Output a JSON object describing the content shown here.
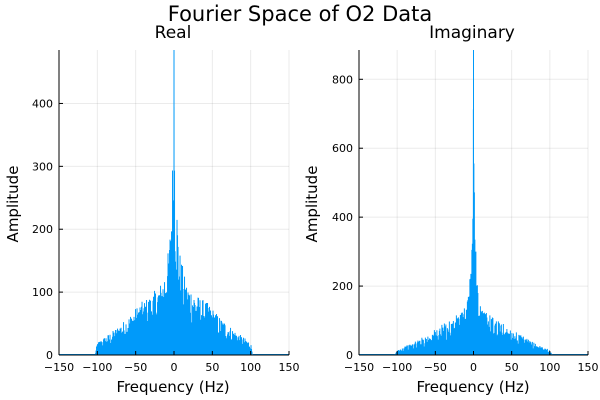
{
  "figure": {
    "title": "Fourier Space of O2 Data",
    "series_color": "#009AFA"
  },
  "chart_data": [
    {
      "type": "line",
      "title": "Real",
      "xlabel": "Frequency (Hz)",
      "ylabel": "Amplitude",
      "xlim": [
        -150,
        150
      ],
      "ylim": [
        0,
        485
      ],
      "xticks": [
        -150,
        -100,
        -50,
        0,
        50,
        100,
        150
      ],
      "yticks": [
        0,
        100,
        200,
        300,
        400
      ],
      "grid": true,
      "legend": false,
      "spectrum": {
        "x_range": [
          -103,
          103
        ],
        "envelope": [
          {
            "x": -150,
            "y": 0
          },
          {
            "x": -103,
            "y": 0
          },
          {
            "x": -100,
            "y": 20
          },
          {
            "x": -80,
            "y": 38
          },
          {
            "x": -60,
            "y": 60
          },
          {
            "x": -45,
            "y": 82
          },
          {
            "x": -30,
            "y": 95
          },
          {
            "x": -15,
            "y": 118
          },
          {
            "x": -6,
            "y": 175
          },
          {
            "x": -2,
            "y": 300
          },
          {
            "x": 0,
            "y": 485
          },
          {
            "x": 2,
            "y": 300
          },
          {
            "x": 6,
            "y": 175
          },
          {
            "x": 15,
            "y": 118
          },
          {
            "x": 30,
            "y": 95
          },
          {
            "x": 45,
            "y": 82
          },
          {
            "x": 60,
            "y": 60
          },
          {
            "x": 80,
            "y": 38
          },
          {
            "x": 100,
            "y": 20
          },
          {
            "x": 103,
            "y": 0
          },
          {
            "x": 150,
            "y": 0
          }
        ]
      }
    },
    {
      "type": "line",
      "title": "Imaginary",
      "xlabel": "Frequency (Hz)",
      "ylabel": "Amplitude",
      "xlim": [
        -150,
        150
      ],
      "ylim": [
        0,
        885
      ],
      "xticks": [
        -150,
        -100,
        -50,
        0,
        50,
        100,
        150
      ],
      "yticks": [
        0,
        200,
        400,
        600,
        800
      ],
      "grid": true,
      "legend": false,
      "spectrum": {
        "x_range": [
          -103,
          103
        ],
        "envelope": [
          {
            "x": -150,
            "y": 0
          },
          {
            "x": -103,
            "y": 0
          },
          {
            "x": -100,
            "y": 15
          },
          {
            "x": -80,
            "y": 35
          },
          {
            "x": -60,
            "y": 60
          },
          {
            "x": -40,
            "y": 90
          },
          {
            "x": -25,
            "y": 110
          },
          {
            "x": -10,
            "y": 140
          },
          {
            "x": -4,
            "y": 250
          },
          {
            "x": -1,
            "y": 500
          },
          {
            "x": 0,
            "y": 885
          },
          {
            "x": 1,
            "y": 500
          },
          {
            "x": 4,
            "y": 250
          },
          {
            "x": 10,
            "y": 140
          },
          {
            "x": 25,
            "y": 110
          },
          {
            "x": 40,
            "y": 90
          },
          {
            "x": 60,
            "y": 60
          },
          {
            "x": 80,
            "y": 35
          },
          {
            "x": 100,
            "y": 15
          },
          {
            "x": 103,
            "y": 0
          },
          {
            "x": 150,
            "y": 0
          }
        ]
      }
    }
  ]
}
